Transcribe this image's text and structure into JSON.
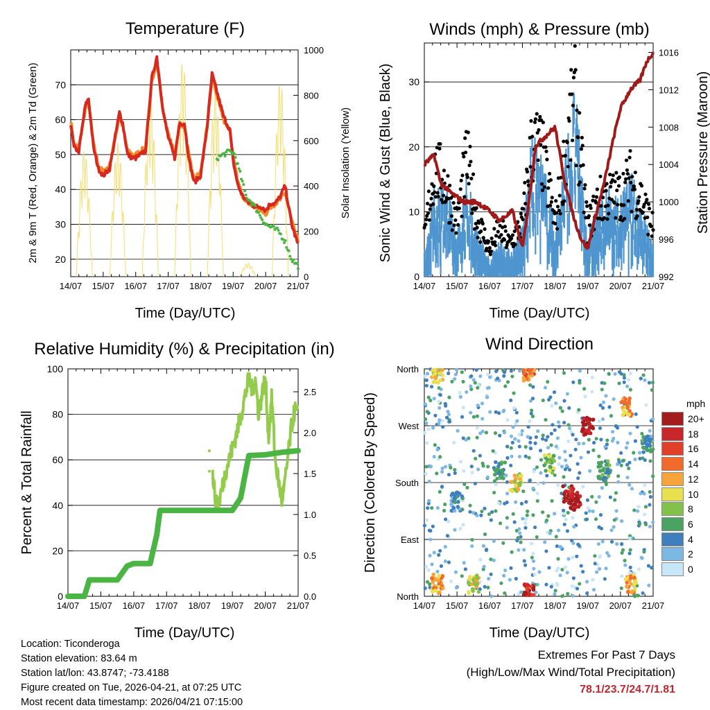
{
  "panels": {
    "temperature": {
      "title": "Temperature (F)",
      "ylabel": "2m & 9m T (Red, Orange) & 2m Td (Green)",
      "ylabel2": "Solar Insolation (Yellow)",
      "xlabel": "Time (Day/UTC)"
    },
    "winds": {
      "title": "Winds (mph) & Pressure (mb)",
      "ylabel": "Sonic Wind & Gust (Blue, Black)",
      "ylabel2": "Station Pressure (Maroon)",
      "xlabel": "Time (Day/UTC)"
    },
    "humidity": {
      "title": "Relative Humidity (%) & Precipitation (in)",
      "ylabel": "Percent & Total Rainfall",
      "xlabel": "Time (Day/UTC)"
    },
    "direction": {
      "title": "Wind Direction",
      "ylabel": "Direction (Colored By Speed)",
      "xlabel": "Time (Day/UTC)"
    }
  },
  "x_ticks": [
    "14/07",
    "15/07",
    "16/07",
    "17/07",
    "18/07",
    "19/07",
    "20/07",
    "21/07"
  ],
  "info": {
    "location": "Location: Ticonderoga",
    "elevation": "Station elevation: 83.64 m",
    "latlon": "Station lat/lon: 43.8747; -73.4188",
    "created": "Figure created on Tue, 2026-04-21, at 07:25 UTC",
    "recent": "Most recent data timestamp: 2026/04/21 07:15:00"
  },
  "extremes": {
    "title": "Extremes For Past 7 Days",
    "subtitle": "(High/Low/Max Wind/Total Precipitation)",
    "values": "78.1/23.7/24.7/1.81"
  },
  "legend": {
    "unit": "mph",
    "labels": [
      "20+",
      "18",
      "16",
      "14",
      "12",
      "10",
      "8",
      "6",
      "4",
      "2",
      "0"
    ],
    "colors": [
      "#a51c1f",
      "#c9262c",
      "#e0402a",
      "#f26a2a",
      "#f7a43a",
      "#e8e04f",
      "#82c24a",
      "#4aa362",
      "#3f7fbf",
      "#7db7e3",
      "#c7e6f8"
    ]
  },
  "colors": {
    "t2m": "#d62a20",
    "t9m": "#f28c28",
    "td": "#4bb543",
    "solar": "#f7dc6f",
    "wind": "#4f95cf",
    "gust": "#000000",
    "pressure": "#a11a1a",
    "rh": "#93cc4c",
    "precip": "#4bb543"
  },
  "chart_data": [
    {
      "type": "line",
      "name": "temperature",
      "title": "Temperature (F)",
      "xlabel": "Time (Day/UTC)",
      "ylabel": "2m & 9m T (Red, Orange) & 2m Td (Green)",
      "ylim": [
        15,
        80
      ],
      "yticks": [
        20,
        30,
        40,
        50,
        60,
        70
      ],
      "y2label": "Solar Insolation (Yellow)",
      "y2lim": [
        0,
        1000
      ],
      "y2ticks": [
        0,
        200,
        400,
        600,
        800,
        1000
      ],
      "xlim_days": [
        0,
        7
      ],
      "series": [
        {
          "name": "2m T",
          "color": "#d62a20",
          "x": [
            0,
            0.1,
            0.25,
            0.45,
            0.55,
            0.7,
            0.85,
            1,
            1.2,
            1.35,
            1.5,
            1.6,
            1.75,
            1.9,
            2,
            2.3,
            2.5,
            2.65,
            2.7,
            2.85,
            3,
            3.2,
            3.35,
            3.5,
            3.65,
            3.8,
            4,
            4.2,
            4.35,
            4.5,
            4.7,
            4.9,
            5,
            5.15,
            5.3,
            5.5,
            5.7,
            5.9,
            6,
            6.15,
            6.3,
            6.45,
            6.6,
            6.8,
            7
          ],
          "y": [
            59,
            52,
            51,
            64,
            66,
            52,
            46,
            44,
            46,
            54,
            62,
            59,
            50,
            49,
            49,
            51,
            72,
            78,
            74,
            62,
            55,
            49,
            59,
            59,
            48,
            42,
            44,
            58,
            73,
            68,
            61,
            57,
            48,
            41,
            38,
            36,
            35,
            35,
            34,
            36,
            36,
            38,
            41,
            30,
            24
          ]
        },
        {
          "name": "9m T",
          "color": "#f28c28",
          "x": [
            0,
            0.1,
            0.25,
            0.45,
            0.55,
            0.7,
            0.85,
            1,
            1.2,
            1.35,
            1.5,
            1.6,
            1.75,
            1.9,
            2,
            2.3,
            2.5,
            2.65,
            2.7,
            2.85,
            3,
            3.2,
            3.35,
            3.5,
            3.65,
            3.8,
            4,
            4.2,
            4.35,
            4.5,
            4.7,
            4.9,
            5,
            5.15,
            5.3,
            5.5,
            5.7,
            5.9,
            6,
            6.15,
            6.3,
            6.45,
            6.6,
            6.8,
            7
          ],
          "y": [
            60,
            53,
            52,
            63,
            65,
            53,
            47,
            45,
            47,
            54,
            61,
            58,
            51,
            50,
            50,
            52,
            71,
            77,
            73,
            62,
            56,
            50,
            59,
            58,
            49,
            43,
            45,
            58,
            72,
            67,
            60,
            57,
            49,
            42,
            38,
            36,
            35,
            34,
            33,
            35,
            36,
            37,
            39,
            31,
            25
          ]
        },
        {
          "name": "2m Td",
          "color": "#4bb543",
          "x": [
            4.5,
            4.7,
            4.9,
            5.05,
            5.2,
            5.4,
            5.6,
            5.8,
            6,
            6.2,
            6.4,
            6.6,
            6.8,
            7
          ],
          "y": [
            49,
            50,
            51,
            50,
            45,
            38,
            36,
            33,
            30,
            29,
            28,
            25,
            20,
            18
          ]
        },
        {
          "name": "Solar insolation",
          "axis": "y2",
          "color": "#f7dc6f",
          "peaks": [
            {
              "x": 0.42,
              "y": 560
            },
            {
              "x": 1.45,
              "y": 590
            },
            {
              "x": 2.45,
              "y": 800
            },
            {
              "x": 3.45,
              "y": 960
            },
            {
              "x": 4.45,
              "y": 820
            },
            {
              "x": 5.45,
              "y": 60
            },
            {
              "x": 6.45,
              "y": 870
            }
          ]
        }
      ]
    },
    {
      "type": "line",
      "name": "winds_pressure",
      "title": "Winds (mph) & Pressure (mb)",
      "xlabel": "Time (Day/UTC)",
      "ylabel": "Sonic Wind & Gust (Blue, Black)",
      "ylim": [
        0,
        36
      ],
      "yticks": [
        0,
        10,
        20,
        30
      ],
      "y2label": "Station Pressure (Maroon)",
      "y2lim": [
        992,
        1017
      ],
      "y2ticks": [
        992,
        996,
        1000,
        1004,
        1008,
        1012,
        1016
      ],
      "xlim_days": [
        0,
        7
      ],
      "series": [
        {
          "name": "Sonic wind",
          "color": "#4f95cf",
          "x": [
            0,
            0.3,
            0.6,
            1,
            1.3,
            1.6,
            2,
            2.3,
            2.6,
            3,
            3.3,
            3.6,
            4,
            4.3,
            4.6,
            5,
            5.3,
            5.6,
            6,
            6.3,
            6.6,
            7
          ],
          "y": [
            3,
            10,
            12,
            5,
            12,
            6,
            2,
            5,
            3,
            6,
            16,
            14,
            6,
            14,
            22,
            5,
            8,
            10,
            9,
            12,
            9,
            4
          ]
        },
        {
          "name": "Gust",
          "color": "#000000",
          "x": [
            0,
            0.3,
            0.6,
            1,
            1.3,
            1.6,
            2,
            2.3,
            2.6,
            3,
            3.3,
            3.6,
            4,
            4.3,
            4.6,
            5,
            5.3,
            5.6,
            6,
            6.3,
            6.6,
            7
          ],
          "y": [
            7,
            20,
            18,
            10,
            22,
            11,
            5,
            9,
            6,
            10,
            25,
            23,
            10,
            22,
            33,
            9,
            14,
            15,
            15,
            18,
            15,
            9
          ]
        },
        {
          "name": "Station pressure",
          "axis": "y2",
          "color": "#a11a1a",
          "x": [
            0,
            0.3,
            0.5,
            0.8,
            1.2,
            1.6,
            2,
            2.3,
            2.7,
            3,
            3.2,
            3.4,
            3.7,
            4,
            4.3,
            4.6,
            4.8,
            5,
            5.2,
            5.5,
            5.8,
            6,
            6.3,
            6.6,
            6.8,
            7
          ],
          "y": [
            1004,
            1005,
            1002,
            1001,
            1000,
            1000,
            999,
            998,
            999,
            995,
            1000,
            1006,
            1007,
            1008,
            1002,
            998,
            996,
            995,
            998,
            1002,
            1007,
            1010,
            1012,
            1013,
            1015,
            1016
          ]
        }
      ]
    },
    {
      "type": "line",
      "name": "humidity_precip",
      "title": "Relative Humidity (%) & Precipitation (in)",
      "xlabel": "Time (Day/UTC)",
      "ylabel": "Percent & Total Rainfall",
      "ylim": [
        0,
        100
      ],
      "yticks": [
        0,
        20,
        40,
        60,
        80,
        100
      ],
      "y2lim": [
        0,
        2.78
      ],
      "y2ticks": [
        0.0,
        0.5,
        1.0,
        1.5,
        2.0,
        2.5
      ],
      "xlim_days": [
        0,
        7
      ],
      "series": [
        {
          "name": "Relative humidity",
          "color": "#93cc4c",
          "x": [
            4.4,
            4.5,
            4.6,
            4.8,
            5,
            5.1,
            5.3,
            5.5,
            5.6,
            5.7,
            5.8,
            6,
            6.1,
            6.2,
            6.3,
            6.5,
            6.6,
            6.8,
            6.9,
            7
          ],
          "y": [
            54,
            40,
            42,
            55,
            65,
            70,
            82,
            96,
            91,
            95,
            80,
            97,
            70,
            88,
            60,
            42,
            50,
            75,
            82,
            80
          ]
        },
        {
          "name": "Total precipitation",
          "axis": "y2",
          "color": "#4bb543",
          "x": [
            0,
            0.5,
            0.65,
            1,
            1.5,
            1.8,
            2,
            2.5,
            2.7,
            2.8,
            3,
            4,
            5,
            5.25,
            5.5,
            6,
            6.5,
            7
          ],
          "y": [
            0,
            0,
            0.2,
            0.2,
            0.2,
            0.37,
            0.4,
            0.4,
            0.75,
            1.05,
            1.05,
            1.05,
            1.05,
            1.2,
            1.72,
            1.73,
            1.76,
            1.78
          ]
        }
      ]
    },
    {
      "type": "scatter",
      "name": "wind_direction",
      "title": "Wind Direction",
      "xlabel": "Time (Day/UTC)",
      "ylabel": "Direction (Colored By Speed)",
      "yticks": [
        "North",
        "East",
        "South",
        "West",
        "North"
      ],
      "ylim_deg": [
        0,
        360
      ],
      "xlim_days": [
        0,
        7
      ],
      "colorbar": {
        "unit": "mph",
        "range": [
          0,
          20
        ]
      },
      "points_summary": [
        {
          "x": 0.4,
          "dir": 20,
          "speed": 12
        },
        {
          "x": 0.4,
          "dir": 350,
          "speed": 10
        },
        {
          "x": 1.0,
          "dir": 150,
          "speed": 4
        },
        {
          "x": 1.5,
          "dir": 20,
          "speed": 10
        },
        {
          "x": 2.3,
          "dir": 200,
          "speed": 6
        },
        {
          "x": 2.8,
          "dir": 180,
          "speed": 10
        },
        {
          "x": 3.2,
          "dir": 355,
          "speed": 14
        },
        {
          "x": 3.2,
          "dir": 5,
          "speed": 18
        },
        {
          "x": 3.8,
          "dir": 210,
          "speed": 8
        },
        {
          "x": 4.4,
          "dir": 160,
          "speed": 18
        },
        {
          "x": 4.6,
          "dir": 150,
          "speed": 20
        },
        {
          "x": 5.0,
          "dir": 270,
          "speed": 20
        },
        {
          "x": 5.5,
          "dir": 200,
          "speed": 6
        },
        {
          "x": 6.2,
          "dir": 300,
          "speed": 12
        },
        {
          "x": 6.3,
          "dir": 20,
          "speed": 12
        },
        {
          "x": 6.8,
          "dir": 240,
          "speed": 6
        }
      ]
    }
  ]
}
